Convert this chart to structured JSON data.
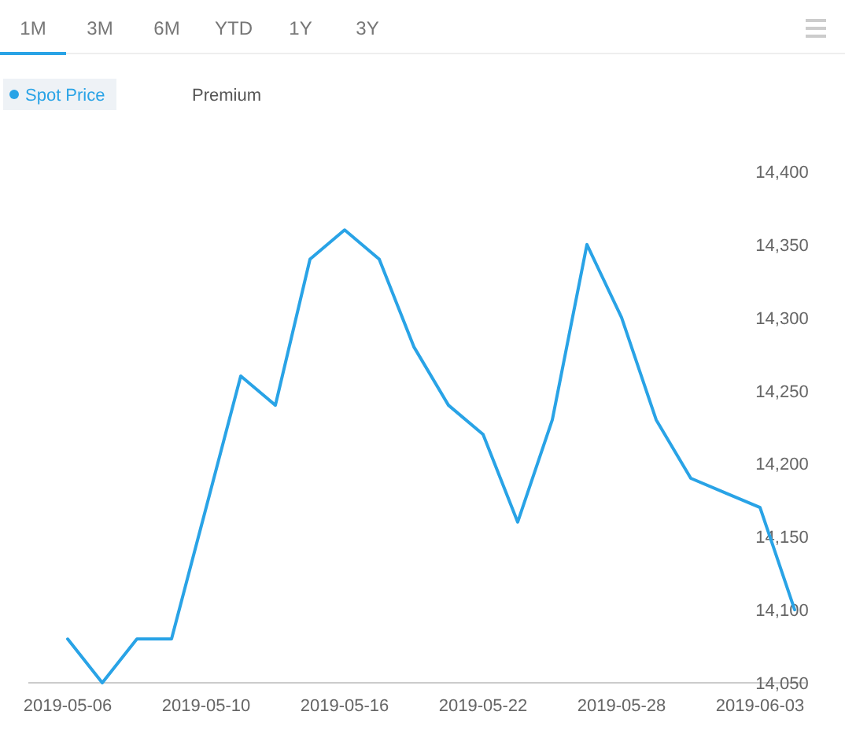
{
  "chart_data": {
    "type": "line",
    "categories": [
      "2019-05-06",
      null,
      null,
      null,
      "2019-05-10",
      null,
      null,
      null,
      "2019-05-16",
      null,
      null,
      null,
      "2019-05-22",
      null,
      null,
      null,
      "2019-05-28",
      null,
      null,
      null,
      "2019-06-03",
      null
    ],
    "series": [
      {
        "name": "Spot Price",
        "color": "#29a3e6",
        "values": [
          14080,
          14050,
          14080,
          14080,
          14170,
          14260,
          14240,
          14340,
          14360,
          14340,
          14280,
          14240,
          14220,
          14160,
          14230,
          14350,
          14300,
          14230,
          14190,
          14180,
          14170,
          14100
        ]
      },
      {
        "name": "Premium",
        "values": [
          null,
          null,
          null,
          null,
          null,
          null,
          null,
          null,
          null,
          null,
          null,
          null,
          null,
          null,
          null,
          null,
          null,
          null,
          null,
          null,
          null,
          null
        ]
      }
    ],
    "ylim": [
      14050,
      14400
    ],
    "yticks": [
      {
        "value": 14050,
        "label": "14,050"
      },
      {
        "value": 14100,
        "label": "14,100"
      },
      {
        "value": 14150,
        "label": "14,150"
      },
      {
        "value": 14200,
        "label": "14,200"
      },
      {
        "value": 14250,
        "label": "14,250"
      },
      {
        "value": 14300,
        "label": "14,300"
      },
      {
        "value": 14350,
        "label": "14,350"
      },
      {
        "value": 14400,
        "label": "14,400"
      }
    ],
    "grid": false,
    "legend": "top left",
    "marker": "none",
    "line_style": "solid",
    "annotations": [
      "1M",
      "3M",
      "6M",
      "YTD",
      "1Y",
      "3Y"
    ]
  }
}
